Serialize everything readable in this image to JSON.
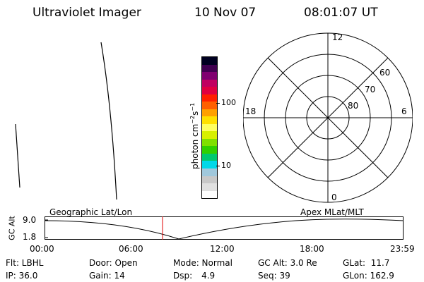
{
  "header": {
    "title": "Ultraviolet Imager",
    "date": "10 Nov 07",
    "time": "08:01:07 UT"
  },
  "colorbar": {
    "unit": "photon cm",
    "unit_sup1": "−2",
    "unit_s": "s",
    "unit_sup2": "−1",
    "tick_100": "100",
    "tick_10": "10",
    "colors": [
      "#ffffff",
      "#e0e0e0",
      "#c8c8c8",
      "#a0c8dc",
      "#00d8e8",
      "#00c870",
      "#30d000",
      "#80e000",
      "#d8f000",
      "#ffff60",
      "#ffe000",
      "#ffa000",
      "#ff6000",
      "#ff2000",
      "#e00040",
      "#c00060",
      "#800070",
      "#400050",
      "#000020"
    ]
  },
  "polar": {
    "mlt_top": "12",
    "mlt_left": "18",
    "mlt_right": "6",
    "mlt_bottom": "0",
    "lat_60": "60",
    "lat_70": "70",
    "lat_80": "80"
  },
  "altitude_plot": {
    "axis_label": "GC Alt",
    "y_max": "9.0",
    "y_min": "1.8",
    "left_caption": "Geographic Lat/Lon",
    "right_caption": "Apex MLat/MLT",
    "x_ticks": [
      "00:00",
      "06:00",
      "12:00",
      "18:00",
      "23:59"
    ],
    "current_time_marker_color": "#e00000"
  },
  "footer": {
    "flt": "Flt: LBHL",
    "ip": "IP: 36.0",
    "door": "Door: Open",
    "gain": "Gain: 14",
    "mode": "Mode: Normal",
    "dsp_label": "Dsp:",
    "dsp_value": "4.9",
    "gcalt": "GC Alt: 3.0 Re",
    "seq": "Seq: 39",
    "glat": "GLat:  11.7",
    "glon": "GLon: 162.9"
  }
}
